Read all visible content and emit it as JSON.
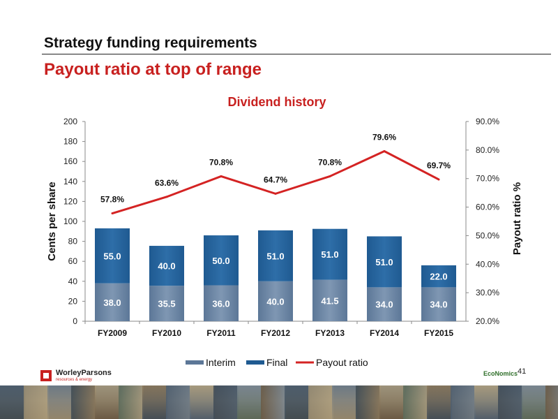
{
  "slide": {
    "title": "Strategy funding requirements",
    "subtitle": "Payout ratio at top of range",
    "page_number": "41"
  },
  "footer": {
    "company_name": "WorleyParsons",
    "company_tagline": "resources & energy",
    "economics_logo": "EcoNomics"
  },
  "chart_data": {
    "type": "bar",
    "stacked": true,
    "title": "Dividend history",
    "categories": [
      "FY2009",
      "FY2010",
      "FY2011",
      "FY2012",
      "FY2013",
      "FY2014",
      "FY2015"
    ],
    "series": [
      {
        "name": "Interim",
        "type": "bar",
        "axis": "left",
        "color": "#5c7797",
        "values": [
          38.0,
          35.5,
          36.0,
          40.0,
          41.5,
          34.0,
          34.0
        ],
        "labels": [
          "38.0",
          "35.5",
          "36.0",
          "40.0",
          "41.5",
          "34.0",
          "34.0"
        ]
      },
      {
        "name": "Final",
        "type": "bar",
        "axis": "left",
        "color": "#1f5a91",
        "values": [
          55.0,
          40.0,
          50.0,
          51.0,
          51.0,
          51.0,
          22.0
        ],
        "labels": [
          "55.0",
          "40.0",
          "50.0",
          "51.0",
          "51.0",
          "51.0",
          "22.0"
        ]
      },
      {
        "name": "Payout ratio",
        "type": "line",
        "axis": "right",
        "color": "#d42323",
        "values": [
          57.8,
          63.6,
          70.8,
          64.7,
          70.8,
          79.6,
          69.7
        ],
        "labels": [
          "57.8%",
          "63.6%",
          "70.8%",
          "64.7%",
          "70.8%",
          "79.6%",
          "69.7%"
        ]
      }
    ],
    "ylabel": "Cents per share",
    "ylim": [
      0,
      200
    ],
    "yticks": [
      "0",
      "20",
      "40",
      "60",
      "80",
      "100",
      "120",
      "140",
      "160",
      "180",
      "200"
    ],
    "y2label": "Payout ratio %",
    "y2lim": [
      20,
      90
    ],
    "y2ticks": [
      "20.0%",
      "30.0%",
      "40.0%",
      "50.0%",
      "60.0%",
      "70.0%",
      "80.0%",
      "90.0%"
    ],
    "grid": false,
    "legend_position": "bottom"
  }
}
